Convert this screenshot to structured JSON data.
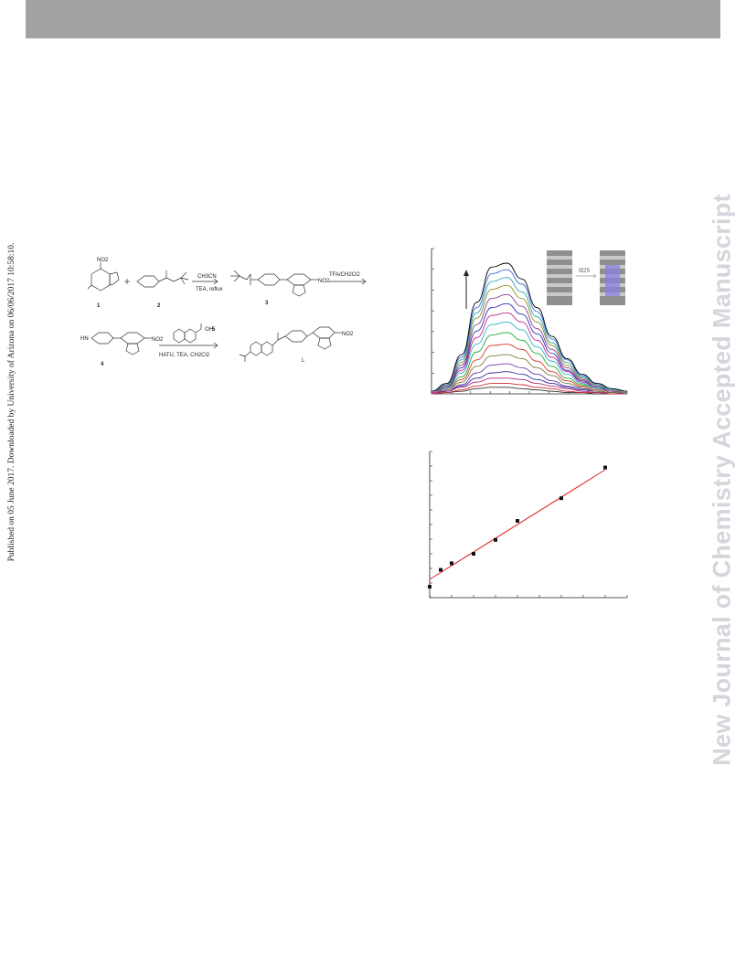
{
  "page": {
    "header_bar_color": "#a3a3a3",
    "side_note": "Published on 05 June 2017. Downloaded by University of Arizona on 06/06/2017 10:58:10.",
    "watermark": "New Journal of Chemistry Accepted Manuscript"
  },
  "scheme": {
    "compound_labels": [
      "1",
      "2",
      "3",
      "4",
      "L"
    ],
    "reagent_5": "5",
    "step1_top": "CH3CN",
    "step1_bottom": "TEA, reflux",
    "step2_top": "TFA/CH2Cl2",
    "step3_bottom": "HATU, TEA, CH2Cl2",
    "group_no2": "NO2",
    "group_hn": "HN",
    "group_cooh": "OH"
  },
  "inset": {
    "label": "H2S"
  },
  "chart_data": [
    {
      "type": "line",
      "title": "",
      "xlabel": "",
      "ylabel": "",
      "grid": false,
      "description_of_trend": "fluorescence increases with added analyte (arrow up)",
      "x": [
        480,
        500,
        520,
        540,
        560,
        580,
        600,
        620,
        640,
        660,
        680,
        700,
        720,
        740
      ],
      "series": [
        {
          "color": "#000000",
          "values": [
            0.02,
            0.08,
            0.3,
            0.7,
            0.97,
            1.0,
            0.88,
            0.66,
            0.44,
            0.27,
            0.15,
            0.08,
            0.04,
            0.02
          ]
        },
        {
          "color": "#3b6fd8",
          "values": [
            0.02,
            0.07,
            0.28,
            0.66,
            0.92,
            0.95,
            0.84,
            0.63,
            0.42,
            0.26,
            0.14,
            0.07,
            0.04,
            0.02
          ]
        },
        {
          "color": "#2aa6b8",
          "values": [
            0.02,
            0.07,
            0.26,
            0.62,
            0.86,
            0.89,
            0.78,
            0.59,
            0.39,
            0.24,
            0.13,
            0.07,
            0.03,
            0.02
          ]
        },
        {
          "color": "#8f8f1f",
          "values": [
            0.02,
            0.06,
            0.24,
            0.58,
            0.8,
            0.83,
            0.73,
            0.55,
            0.37,
            0.22,
            0.12,
            0.06,
            0.03,
            0.01
          ]
        },
        {
          "color": "#8a3e8a",
          "values": [
            0.02,
            0.06,
            0.22,
            0.53,
            0.73,
            0.76,
            0.67,
            0.5,
            0.34,
            0.2,
            0.11,
            0.06,
            0.03,
            0.01
          ]
        },
        {
          "color": "#2b2bbf",
          "values": [
            0.02,
            0.05,
            0.2,
            0.48,
            0.66,
            0.69,
            0.61,
            0.46,
            0.31,
            0.18,
            0.1,
            0.05,
            0.03,
            0.01
          ]
        },
        {
          "color": "#c8288a",
          "values": [
            0.01,
            0.05,
            0.18,
            0.43,
            0.6,
            0.62,
            0.55,
            0.41,
            0.28,
            0.17,
            0.09,
            0.05,
            0.02,
            0.01
          ]
        },
        {
          "color": "#29b3c9",
          "values": [
            0.01,
            0.04,
            0.16,
            0.38,
            0.53,
            0.55,
            0.49,
            0.36,
            0.25,
            0.15,
            0.08,
            0.04,
            0.02,
            0.01
          ]
        },
        {
          "color": "#1ea832",
          "values": [
            0.01,
            0.04,
            0.13,
            0.32,
            0.45,
            0.47,
            0.41,
            0.31,
            0.21,
            0.12,
            0.07,
            0.04,
            0.02,
            0.01
          ]
        },
        {
          "color": "#d23a2a",
          "values": [
            0.01,
            0.03,
            0.11,
            0.26,
            0.37,
            0.38,
            0.34,
            0.25,
            0.17,
            0.1,
            0.06,
            0.03,
            0.02,
            0.01
          ]
        },
        {
          "color": "#7a7a3a",
          "values": [
            0.01,
            0.03,
            0.09,
            0.21,
            0.29,
            0.3,
            0.27,
            0.2,
            0.14,
            0.08,
            0.05,
            0.02,
            0.01,
            0.01
          ]
        },
        {
          "color": "#6a3aa8",
          "values": [
            0.01,
            0.02,
            0.07,
            0.16,
            0.22,
            0.23,
            0.2,
            0.15,
            0.1,
            0.06,
            0.04,
            0.02,
            0.01,
            0.0
          ]
        },
        {
          "color": "#2d2d9a",
          "values": [
            0.01,
            0.02,
            0.06,
            0.12,
            0.16,
            0.17,
            0.15,
            0.11,
            0.08,
            0.05,
            0.03,
            0.02,
            0.01,
            0.0
          ]
        },
        {
          "color": "#b0287a",
          "values": [
            0.0,
            0.02,
            0.05,
            0.09,
            0.12,
            0.12,
            0.11,
            0.08,
            0.06,
            0.04,
            0.02,
            0.01,
            0.01,
            0.0
          ]
        },
        {
          "color": "#d22a2a",
          "values": [
            0.0,
            0.01,
            0.03,
            0.06,
            0.08,
            0.08,
            0.07,
            0.05,
            0.04,
            0.02,
            0.01,
            0.01,
            0.0,
            0.0
          ]
        },
        {
          "color": "#333333",
          "values": [
            0.0,
            0.01,
            0.02,
            0.04,
            0.05,
            0.05,
            0.04,
            0.03,
            0.02,
            0.01,
            0.01,
            0.0,
            0.0,
            0.0
          ]
        }
      ]
    },
    {
      "type": "scatter",
      "title": "",
      "xlabel": "",
      "ylabel": "",
      "grid": false,
      "xlim": [
        0,
        9
      ],
      "ylim": [
        0,
        10
      ],
      "x": [
        0.0,
        0.5,
        1.0,
        2.0,
        3.0,
        4.0,
        6.0,
        8.0
      ],
      "y": [
        0.75,
        1.9,
        2.35,
        3.0,
        3.95,
        5.25,
        6.8,
        8.9
      ],
      "fit_line": {
        "color": "#e02020",
        "x": [
          0.0,
          8.0
        ],
        "y": [
          1.25,
          8.75
        ]
      }
    }
  ]
}
